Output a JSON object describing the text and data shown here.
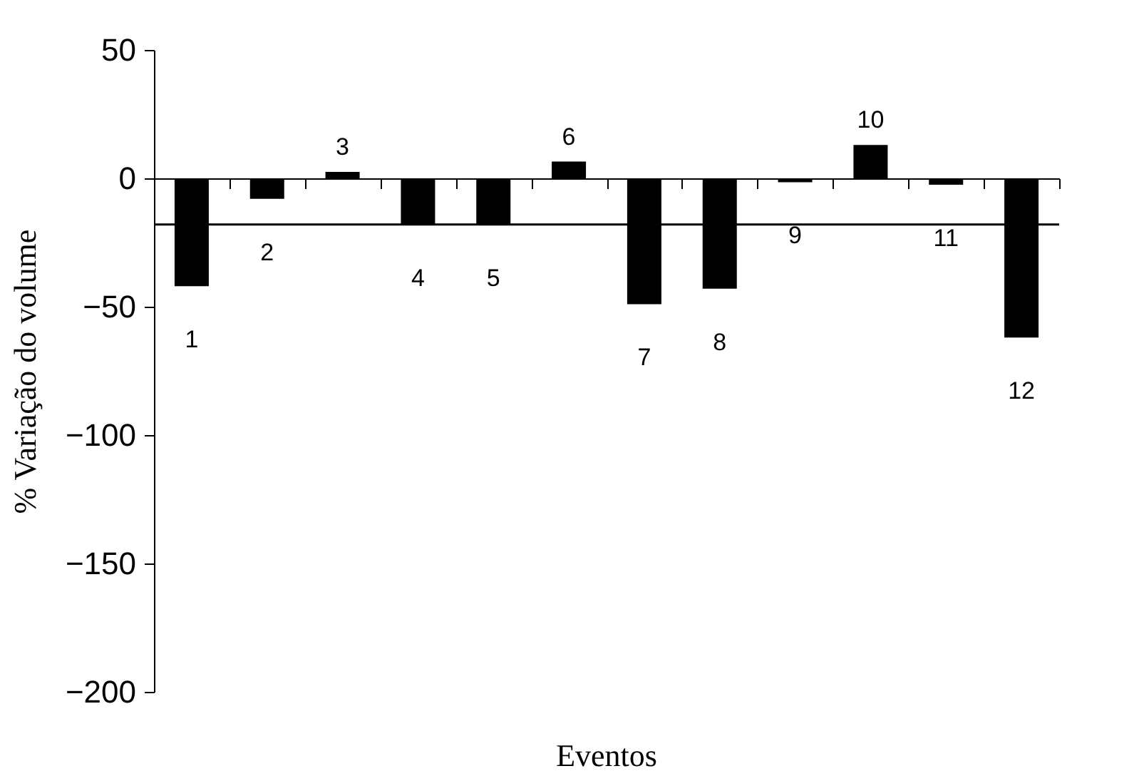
{
  "chart_data": {
    "type": "bar",
    "xlabel": "Eventos",
    "ylabel": "% Variação do volume",
    "categories": [
      "1",
      "2",
      "3",
      "4",
      "5",
      "6",
      "7",
      "8",
      "9",
      "10",
      "11",
      "12"
    ],
    "values": [
      -42,
      -8,
      2.5,
      -18,
      -18,
      6.5,
      -49,
      -43,
      -1.5,
      13,
      -2.5,
      -62
    ],
    "color": "#000000",
    "ylim": [
      -200,
      50
    ],
    "yticks": [
      -200,
      -150,
      -100,
      -50,
      0,
      50
    ],
    "ref_lines": [
      {
        "axis": "y",
        "value": -18,
        "color": "#000000"
      }
    ]
  }
}
